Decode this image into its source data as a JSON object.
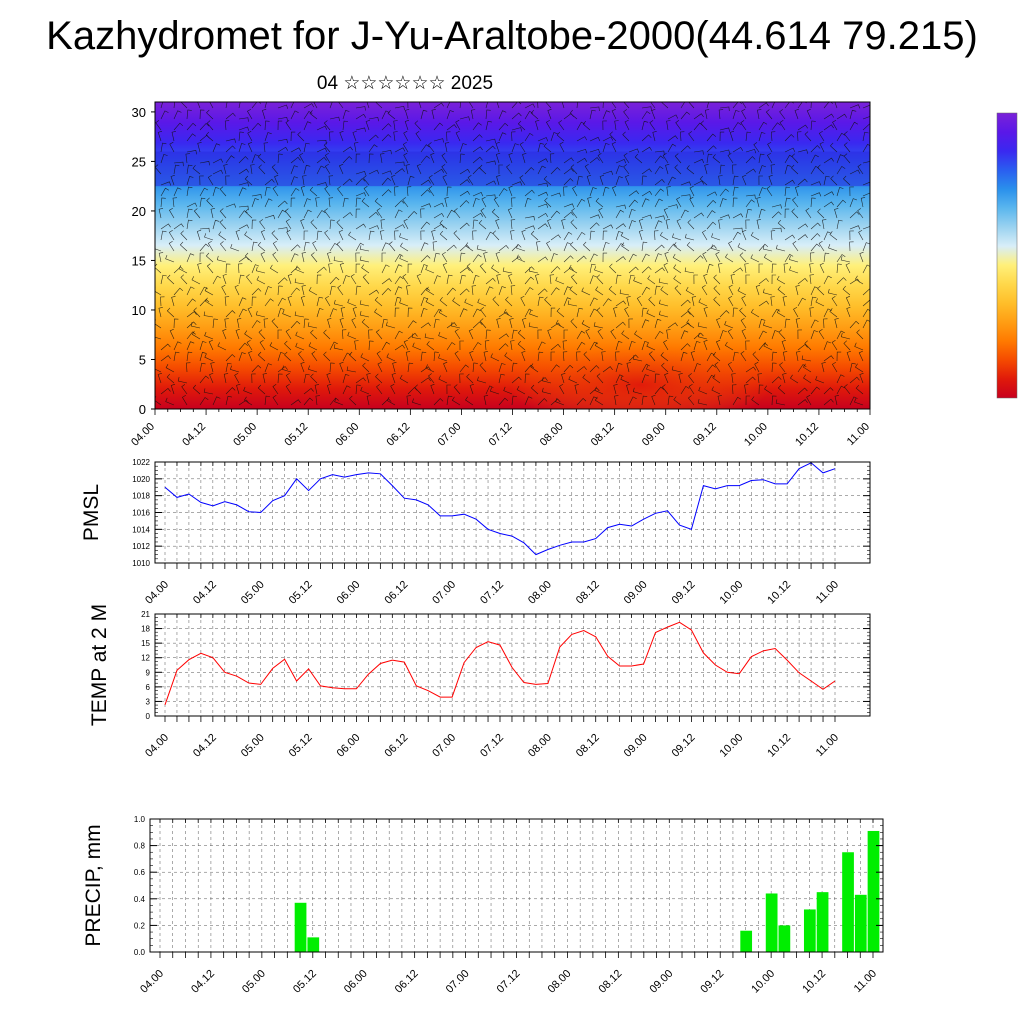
{
  "title": "Kazhydromet for J-Yu-Araltobe-2000(44.614 79.215)",
  "subtitle": "04 ☆☆☆☆☆☆ 2025",
  "time_labels": [
    "04.00",
    "04.12",
    "05.00",
    "05.12",
    "06.00",
    "06.12",
    "07.00",
    "07.12",
    "08.00",
    "08.12",
    "09.00",
    "09.12",
    "10.00",
    "10.12",
    "11.00"
  ],
  "colorbar_colors": [
    "#c8001e",
    "#e01a0a",
    "#f54a00",
    "#ff7a00",
    "#ff9e14",
    "#ffbe2a",
    "#ffd84a",
    "#fff07a",
    "#d8eef8",
    "#9ad2f0",
    "#5ab6ee",
    "#2a90ec",
    "#2a5ef0",
    "#3a28f0",
    "#5a18e8",
    "#7a22d8"
  ],
  "chart_data": [
    {
      "id": "profile",
      "type": "heatmap",
      "title": "",
      "ylim": [
        0,
        31
      ],
      "yticks": [
        0,
        5,
        10,
        15,
        20,
        25,
        30
      ],
      "x": [
        "04.00",
        "04.12",
        "05.00",
        "05.12",
        "06.00",
        "06.12",
        "07.00",
        "07.12",
        "08.00",
        "08.12",
        "09.00",
        "09.12",
        "10.00",
        "10.12",
        "11.00"
      ],
      "levels": [
        0,
        31
      ],
      "legend": "colorbar right",
      "wind_barbs": true
    },
    {
      "id": "pmsl",
      "type": "line",
      "ylabel": "PMSL",
      "ylim": [
        1010,
        1022
      ],
      "yticks": [
        1010,
        1012,
        1014,
        1016,
        1018,
        1020,
        1022
      ],
      "step_hours": 3,
      "color": "#0000ff",
      "grid": true,
      "values": [
        1019.0,
        1017.8,
        1018.2,
        1017.2,
        1016.8,
        1017.3,
        1016.9,
        1016.1,
        1016.0,
        1017.4,
        1018.0,
        1020.0,
        1018.6,
        1020.0,
        1020.5,
        1020.2,
        1020.5,
        1020.7,
        1020.6,
        1019.2,
        1017.7,
        1017.5,
        1016.9,
        1015.6,
        1015.6,
        1015.8,
        1015.2,
        1014.0,
        1013.5,
        1013.2,
        1012.4,
        1011.0,
        1011.6,
        1012.1,
        1012.5,
        1012.5,
        1012.9,
        1014.2,
        1014.6,
        1014.4,
        1015.2,
        1015.9,
        1016.2,
        1014.5,
        1014.0,
        1019.2,
        1018.8,
        1019.2,
        1019.2,
        1019.8,
        1019.9,
        1019.4,
        1019.4,
        1021.2,
        1021.9,
        1020.7,
        1021.2
      ]
    },
    {
      "id": "temp",
      "type": "line",
      "ylabel": "TEMP at 2 M",
      "ylim": [
        0,
        21
      ],
      "yticks": [
        0,
        3,
        6,
        9,
        12,
        15,
        18,
        21
      ],
      "step_hours": 3,
      "color": "#ff0000",
      "grid": true,
      "values": [
        2.3,
        9.4,
        11.6,
        12.9,
        12.0,
        9.0,
        8.2,
        6.8,
        6.5,
        9.8,
        11.7,
        7.2,
        9.7,
        6.2,
        5.8,
        5.6,
        5.6,
        8.6,
        10.8,
        11.5,
        11.1,
        6.2,
        5.2,
        3.9,
        3.9,
        11.0,
        14.1,
        15.3,
        14.6,
        10.0,
        6.9,
        6.5,
        6.7,
        14.2,
        16.8,
        17.6,
        16.3,
        12.3,
        10.3,
        10.3,
        10.7,
        17.2,
        18.3,
        19.3,
        17.7,
        13.0,
        10.5,
        9.0,
        8.7,
        12.2,
        13.4,
        13.9,
        11.5,
        8.9,
        7.2,
        5.5,
        7.2
      ]
    },
    {
      "id": "precip",
      "type": "bar",
      "ylabel": "PRECIP, mm",
      "ylim": [
        0,
        1.0
      ],
      "yticks": [
        0.0,
        0.2,
        0.4,
        0.6,
        0.8,
        1.0
      ],
      "step_hours": 3,
      "color": "#00ee00",
      "grid": true,
      "values": [
        0,
        0,
        0,
        0,
        0,
        0,
        0,
        0,
        0,
        0,
        0,
        0.37,
        0.11,
        0,
        0,
        0,
        0,
        0,
        0,
        0,
        0,
        0,
        0,
        0,
        0,
        0,
        0,
        0,
        0,
        0,
        0,
        0,
        0,
        0,
        0,
        0,
        0,
        0,
        0,
        0,
        0,
        0,
        0,
        0,
        0,
        0,
        0.16,
        0,
        0.44,
        0.2,
        0,
        0.32,
        0.45,
        0,
        0.75,
        0.43,
        0.91
      ]
    }
  ]
}
